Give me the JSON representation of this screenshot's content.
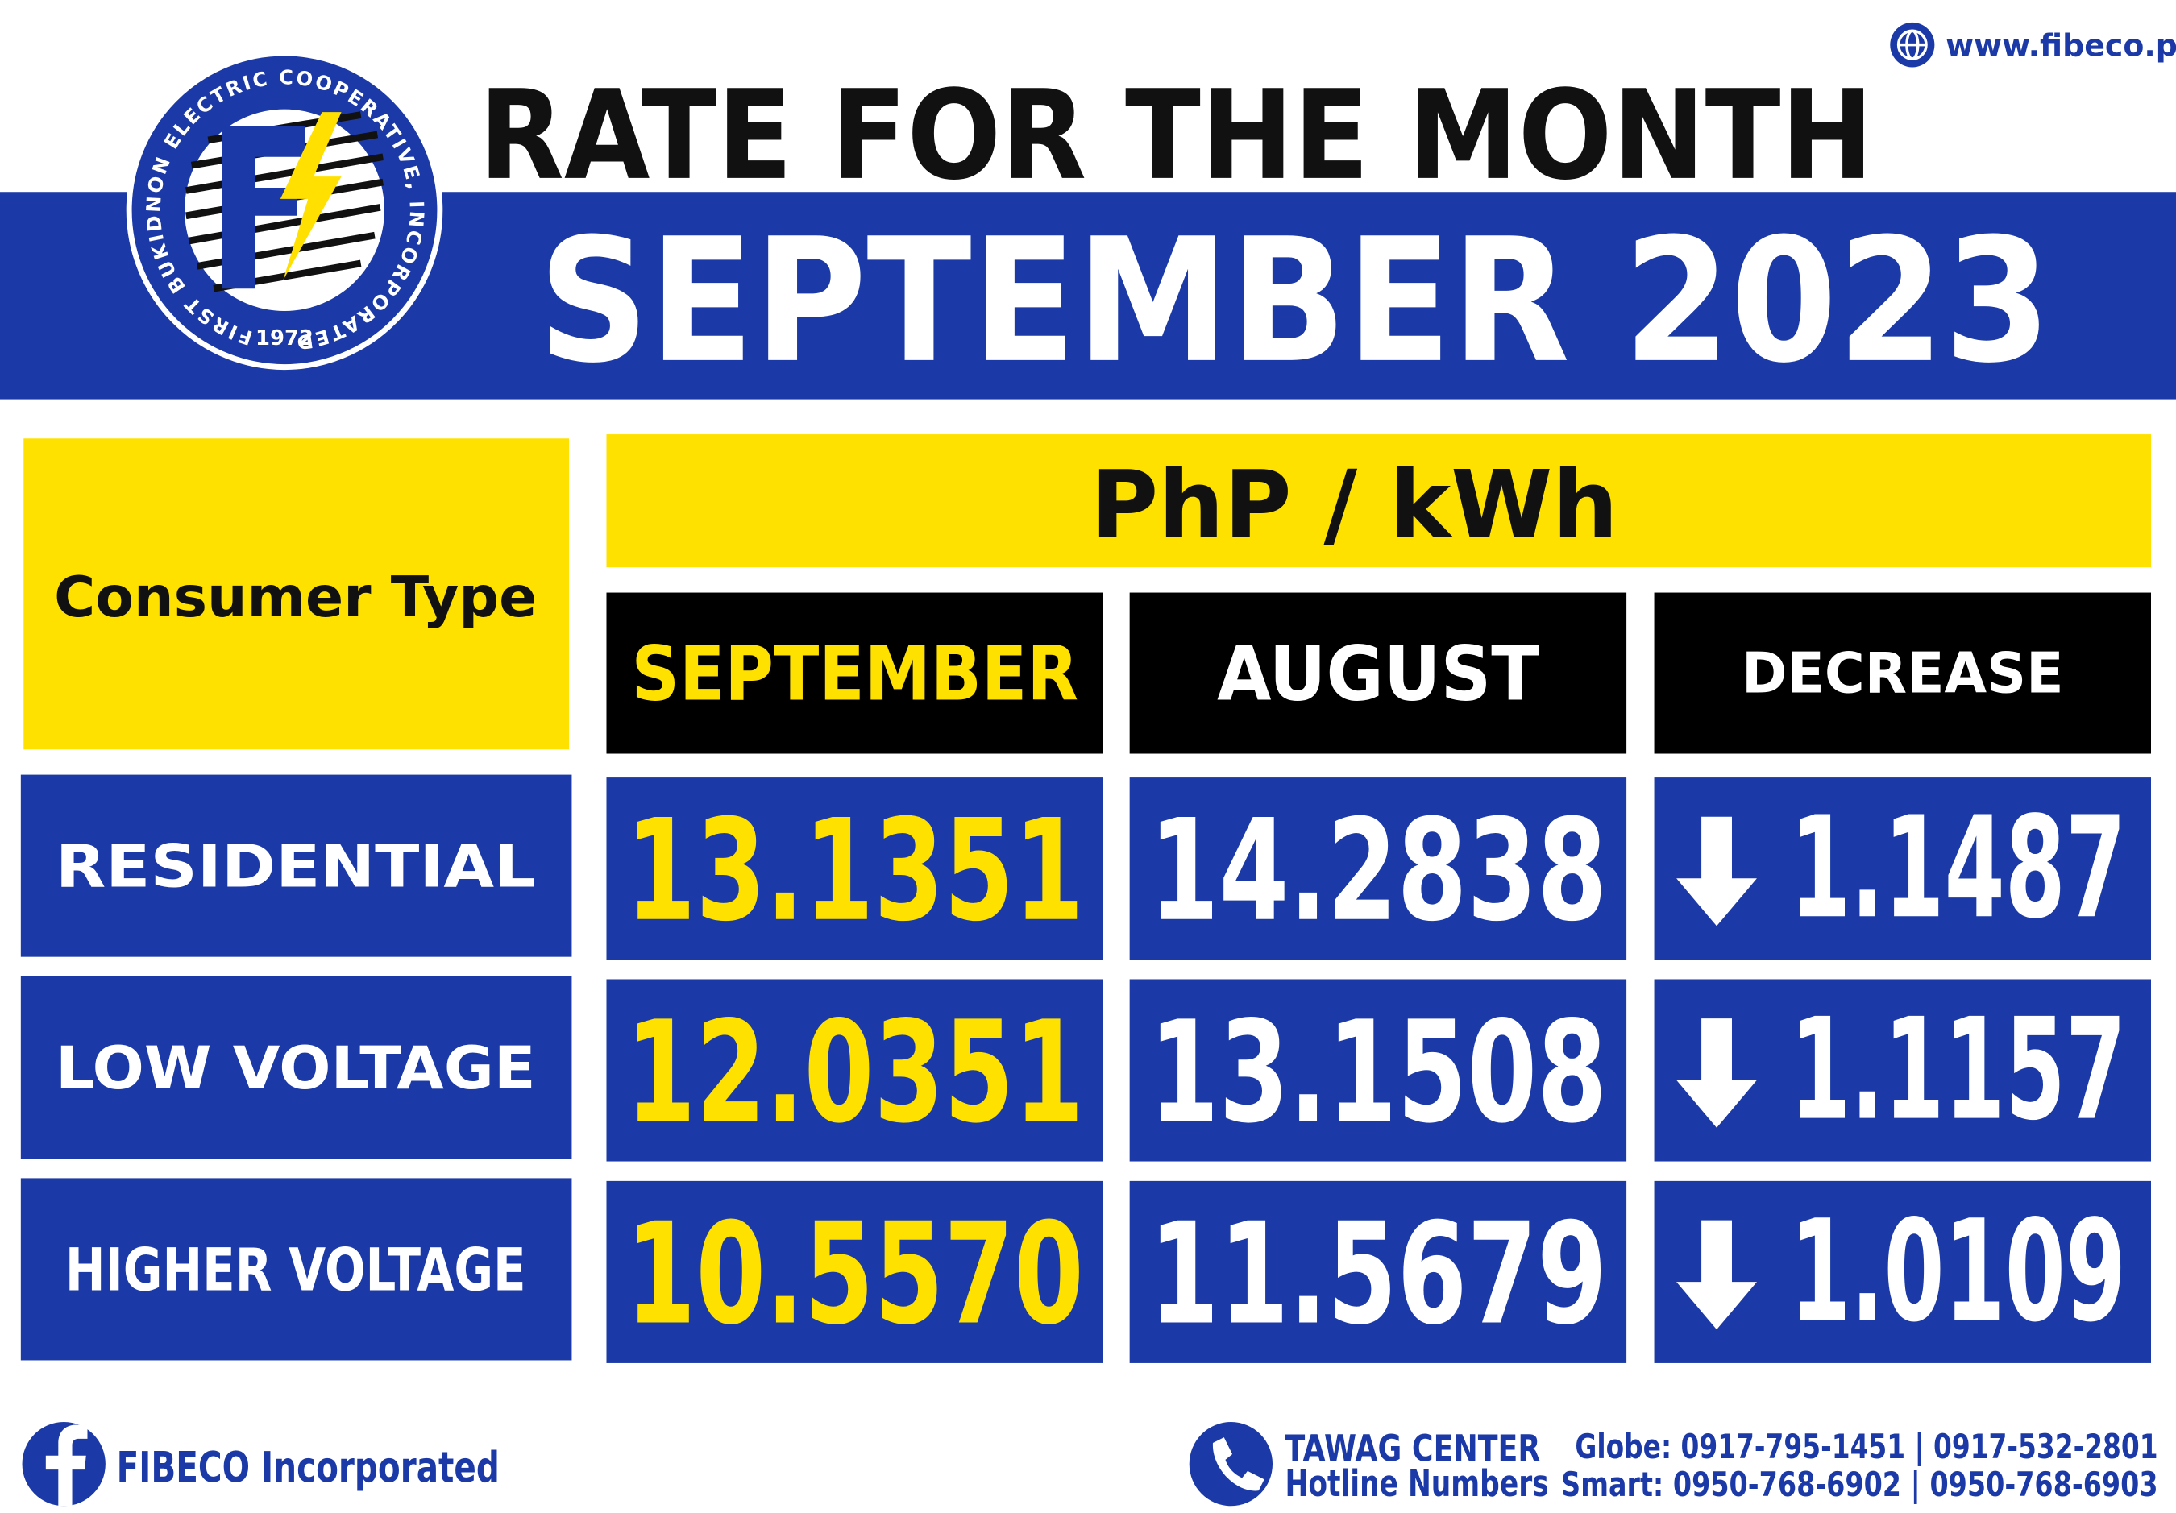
{
  "header": {
    "website": "www.fibeco.ph",
    "title": "RATE FOR THE MONTH",
    "month": "SEPTEMBER 2023",
    "logo": {
      "ring_text": "FIRST BUKIDNON ELECTRIC COOPERATIVE, INCORPORATED",
      "year": "1972"
    }
  },
  "table": {
    "unit": "PhP / kWh",
    "type_header": "Consumer Type",
    "columns": [
      "SEPTEMBER",
      "AUGUST",
      "DECREASE"
    ],
    "rows": [
      {
        "type": "RESIDENTIAL",
        "values": [
          "13.1351",
          "14.2838",
          "1.1487"
        ]
      },
      {
        "type": "LOW VOLTAGE",
        "values": [
          "12.0351",
          "13.1508",
          "1.1157"
        ]
      },
      {
        "type": "HIGHER VOLTAGE",
        "values": [
          "10.5570",
          "11.5679",
          "1.0109"
        ]
      }
    ]
  },
  "footer": {
    "facebook": "FIBECO Incorporated",
    "hotline_title": "TAWAG CENTER",
    "hotline_subtitle": "Hotline Numbers",
    "globe": "Globe: 0917-795-1451 | 0917-532-2801",
    "smart": "Smart:  0950-768-6902 | 0950-768-6903"
  }
}
